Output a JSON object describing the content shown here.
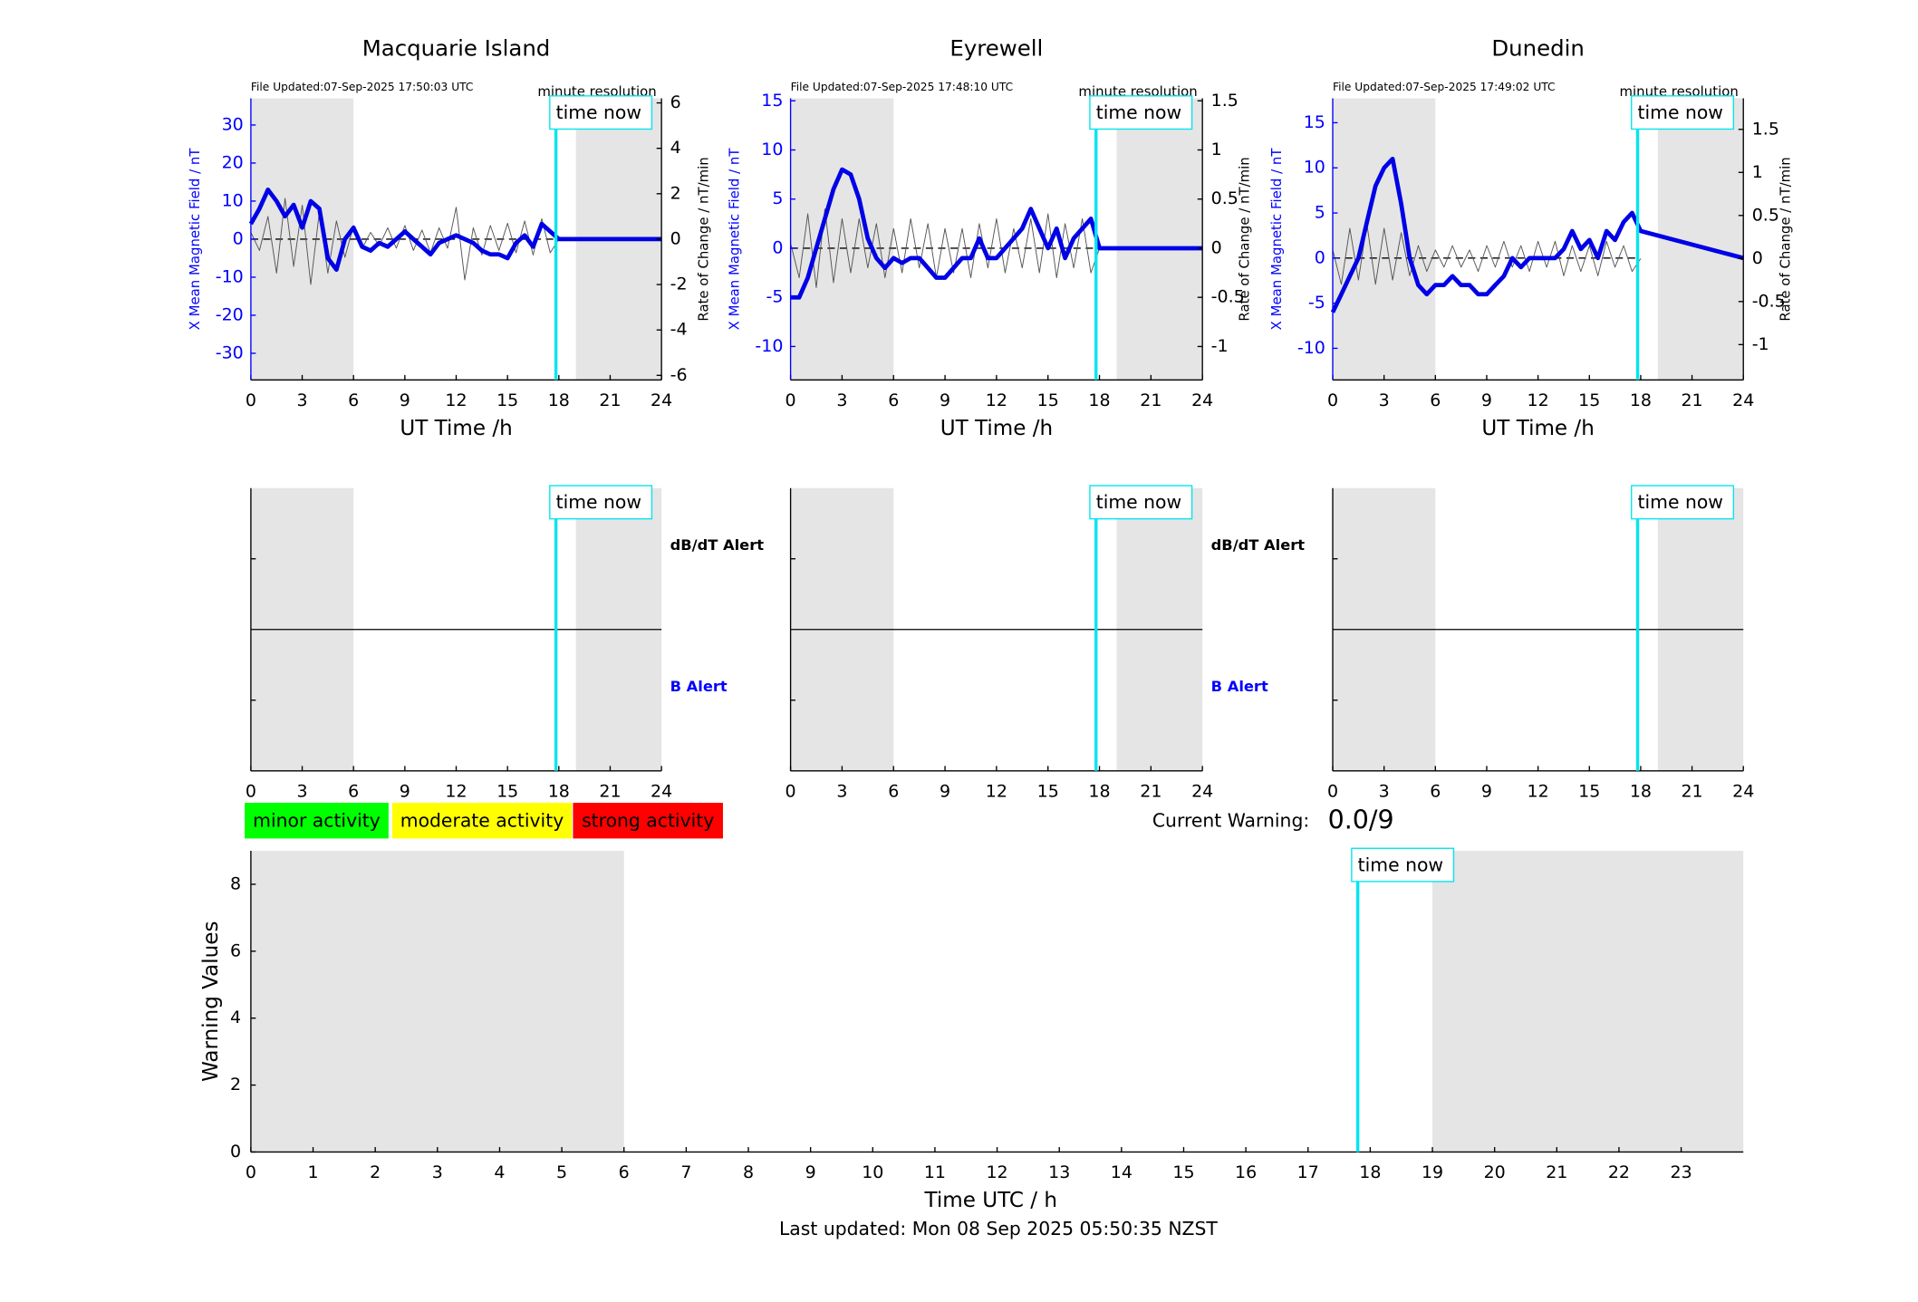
{
  "chart_data": [
    {
      "type": "station",
      "title": "Macquarie Island",
      "note": "File Updated:07-Sep-2025 17:50:03 UTC",
      "resolution": "minute resolution",
      "time_now": 17.83,
      "time_now_label": "time now",
      "xlabel": "UT Time /h",
      "ylabel": "X Mean Magnetic Field / nT",
      "y2label": "Rate of Change / nT/min",
      "xlim": [
        0,
        24
      ],
      "xticks": [
        0,
        3,
        6,
        9,
        12,
        15,
        18,
        21,
        24
      ],
      "ylim": [
        -37,
        37
      ],
      "yticks": [
        -30,
        -20,
        -10,
        0,
        10,
        20,
        30
      ],
      "y2lim": [
        -6.2,
        6.2
      ],
      "y2ticks": [
        -6,
        -4,
        -2,
        0,
        2,
        4,
        6
      ],
      "shaded": [
        [
          0,
          6
        ],
        [
          19,
          24
        ]
      ],
      "series": [
        {
          "color": "#555555",
          "axis": "y2",
          "x": [
            0,
            0.5,
            1,
            1.5,
            2,
            2.5,
            3,
            3.5,
            4,
            4.5,
            5,
            5.5,
            6,
            6.5,
            7,
            7.5,
            8,
            8.5,
            9,
            9.5,
            10,
            10.5,
            11,
            11.5,
            12,
            12.5,
            13,
            13.5,
            14,
            14.5,
            15,
            15.5,
            16,
            16.5,
            17,
            17.5,
            18
          ],
          "values": [
            0.3,
            -0.5,
            1,
            -1.5,
            1.8,
            -1.2,
            1.5,
            -2,
            1.2,
            -1.5,
            0.8,
            -0.8,
            0.6,
            -0.4,
            0.3,
            -0.3,
            0.5,
            -0.4,
            0.6,
            -0.5,
            0.4,
            -0.6,
            0.5,
            -0.4,
            1.4,
            -1.8,
            0.5,
            -0.7,
            0.6,
            -0.5,
            0.7,
            -0.6,
            0.8,
            -0.7,
            0.9,
            -0.6,
            0
          ]
        },
        {
          "color": "#0000e6",
          "x": [
            0,
            0.5,
            1,
            1.5,
            2,
            2.5,
            3,
            3.5,
            4,
            4.5,
            5,
            5.5,
            6,
            6.5,
            7,
            7.5,
            8,
            8.5,
            9,
            9.5,
            10,
            10.5,
            11,
            11.5,
            12,
            12.5,
            13,
            13.5,
            14,
            14.5,
            15,
            15.5,
            16,
            16.5,
            17,
            17.5,
            18,
            24
          ],
          "values": [
            4,
            8,
            13,
            10,
            6,
            9,
            3,
            10,
            8,
            -5,
            -8,
            0,
            3,
            -2,
            -3,
            -1,
            -2,
            0,
            2,
            0,
            -2,
            -4,
            -1,
            0,
            1,
            0,
            -1,
            -3,
            -4,
            -4,
            -5,
            -1,
            1,
            -2,
            4,
            2,
            0,
            0
          ]
        }
      ]
    },
    {
      "type": "station",
      "title": "Eyrewell",
      "note": "File Updated:07-Sep-2025 17:48:10 UTC",
      "resolution": "minute resolution",
      "time_now": 17.8,
      "time_now_label": "time now",
      "xlabel": "UT Time /h",
      "ylabel": "X Mean Magnetic Field / nT",
      "y2label": "Rate of Change / nT/min",
      "xlim": [
        0,
        24
      ],
      "xticks": [
        0,
        3,
        6,
        9,
        12,
        15,
        18,
        21,
        24
      ],
      "ylim": [
        -13.4,
        15.25
      ],
      "yticks": [
        -10,
        -5,
        0,
        5,
        10,
        15
      ],
      "y2lim": [
        -1.34,
        1.525
      ],
      "y2ticks": [
        -1,
        -0.5,
        0,
        0.5,
        1,
        1.5
      ],
      "shaded": [
        [
          0,
          6
        ],
        [
          19,
          24
        ]
      ],
      "series": [
        {
          "color": "#555555",
          "axis": "y2",
          "x": [
            0,
            0.5,
            1,
            1.5,
            2,
            2.5,
            3,
            3.5,
            4,
            4.5,
            5,
            5.5,
            6,
            6.5,
            7,
            7.5,
            8,
            8.5,
            9,
            9.5,
            10,
            10.5,
            11,
            11.5,
            12,
            12.5,
            13,
            13.5,
            14,
            14.5,
            15,
            15.5,
            16,
            16.5,
            17,
            17.5,
            18
          ],
          "values": [
            0.05,
            -0.3,
            0.35,
            -0.4,
            0.4,
            -0.35,
            0.3,
            -0.25,
            0.3,
            -0.2,
            0.25,
            -0.3,
            0.2,
            -0.25,
            0.3,
            -0.2,
            0.25,
            -0.3,
            0.2,
            -0.25,
            0.2,
            -0.3,
            0.25,
            -0.2,
            0.3,
            -0.25,
            0.2,
            -0.2,
            0.3,
            -0.25,
            0.35,
            -0.3,
            0.25,
            -0.2,
            0.3,
            -0.25,
            0
          ]
        },
        {
          "color": "#0000e6",
          "x": [
            0,
            0.5,
            1,
            1.5,
            2,
            2.5,
            3,
            3.5,
            4,
            4.5,
            5,
            5.5,
            6,
            6.5,
            7,
            7.5,
            8,
            8.5,
            9,
            9.5,
            10,
            10.5,
            11,
            11.5,
            12,
            12.5,
            13,
            13.5,
            14,
            14.5,
            15,
            15.5,
            16,
            16.5,
            17,
            17.5,
            18,
            24
          ],
          "values": [
            -5,
            -5,
            -3,
            0,
            3,
            6,
            8,
            7.5,
            5,
            1,
            -1,
            -2,
            -1,
            -1.5,
            -1,
            -1,
            -2,
            -3,
            -3,
            -2,
            -1,
            -1,
            1,
            -1,
            -1,
            0,
            1,
            2,
            4,
            2,
            0,
            2,
            -1,
            1,
            2,
            3,
            0,
            0
          ]
        }
      ]
    },
    {
      "type": "station",
      "title": "Dunedin",
      "note": "File Updated:07-Sep-2025 17:49:02 UTC",
      "resolution": "minute resolution",
      "time_now": 17.82,
      "time_now_label": "time now",
      "xlabel": "UT Time /h",
      "ylabel": "X Mean Magnetic Field / nT",
      "y2label": "Rate of Change / nT/min",
      "xlim": [
        0,
        24
      ],
      "xticks": [
        0,
        3,
        6,
        9,
        12,
        15,
        18,
        21,
        24
      ],
      "ylim": [
        -13.5,
        17.7
      ],
      "yticks": [
        -10,
        -5,
        0,
        5,
        10,
        15
      ],
      "y2lim": [
        -1.41,
        1.86
      ],
      "y2ticks": [
        -1,
        -0.5,
        0,
        0.5,
        1,
        1.5
      ],
      "shaded": [
        [
          0,
          6
        ],
        [
          19,
          24
        ]
      ],
      "series": [
        {
          "color": "#555555",
          "axis": "y2",
          "x": [
            0,
            0.5,
            1,
            1.5,
            2,
            2.5,
            3,
            3.5,
            4,
            4.5,
            5,
            5.5,
            6,
            6.5,
            7,
            7.5,
            8,
            8.5,
            9,
            9.5,
            10,
            10.5,
            11,
            11.5,
            12,
            12.5,
            13,
            13.5,
            14,
            14.5,
            15,
            15.5,
            16,
            16.5,
            17,
            17.5,
            18
          ],
          "values": [
            0.1,
            -0.3,
            0.35,
            -0.25,
            0.4,
            -0.3,
            0.35,
            -0.25,
            0.3,
            -0.2,
            0.15,
            -0.15,
            0.1,
            -0.1,
            0.15,
            -0.1,
            0.1,
            -0.15,
            0.15,
            -0.1,
            0.2,
            -0.1,
            0.15,
            -0.15,
            0.2,
            -0.1,
            0.2,
            -0.2,
            0.15,
            -0.15,
            0.15,
            -0.2,
            0.2,
            -0.1,
            0.15,
            -0.15,
            0
          ]
        },
        {
          "color": "#0000e6",
          "x": [
            0,
            0.5,
            1,
            1.5,
            2,
            2.5,
            3,
            3.5,
            4,
            4.5,
            5,
            5.5,
            6,
            6.5,
            7,
            7.5,
            8,
            8.5,
            9,
            9.5,
            10,
            10.5,
            11,
            11.5,
            12,
            12.5,
            13,
            13.5,
            14,
            14.5,
            15,
            15.5,
            16,
            16.5,
            17,
            17.5,
            18,
            24
          ],
          "values": [
            -6,
            -4,
            -2,
            0,
            4,
            8,
            10,
            11,
            6,
            0,
            -3,
            -4,
            -3,
            -3,
            -2,
            -3,
            -3,
            -4,
            -4,
            -3,
            -2,
            0,
            -1,
            0,
            0,
            0,
            0,
            1,
            3,
            1,
            2,
            0,
            3,
            2,
            4,
            5,
            3,
            0
          ]
        }
      ]
    },
    {
      "type": "alert",
      "time_now": 17.83,
      "time_now_label": "time now",
      "xlim": [
        0,
        24
      ],
      "xticks": [
        0,
        3,
        6,
        9,
        12,
        15,
        18,
        21,
        24
      ],
      "shaded": [
        [
          0,
          6
        ],
        [
          19,
          24
        ]
      ],
      "labels": [
        "dB/dT Alert",
        "B Alert"
      ],
      "label_colors": [
        "#000000",
        "#0000ff"
      ]
    },
    {
      "type": "alert",
      "time_now": 17.8,
      "time_now_label": "time now",
      "xlim": [
        0,
        24
      ],
      "xticks": [
        0,
        3,
        6,
        9,
        12,
        15,
        18,
        21,
        24
      ],
      "shaded": [
        [
          0,
          6
        ],
        [
          19,
          24
        ]
      ],
      "labels": [
        "dB/dT Alert",
        "B Alert"
      ],
      "label_colors": [
        "#000000",
        "#0000ff"
      ]
    },
    {
      "type": "alert",
      "time_now": 17.82,
      "time_now_label": "time now",
      "xlim": [
        0,
        24
      ],
      "xticks": [
        0,
        3,
        6,
        9,
        12,
        15,
        18,
        21,
        24
      ],
      "shaded": [
        [
          0,
          6
        ],
        [
          19,
          24
        ]
      ],
      "labels": [],
      "label_colors": []
    },
    {
      "type": "warning",
      "time_now": 17.8,
      "time_now_label": "time now",
      "xlabel": "Time UTC / h",
      "ylabel": "Warning Values",
      "xlim": [
        0,
        24
      ],
      "xticks": [
        0,
        1,
        2,
        3,
        4,
        5,
        6,
        7,
        8,
        9,
        10,
        11,
        12,
        13,
        14,
        15,
        16,
        17,
        18,
        19,
        20,
        21,
        22,
        23
      ],
      "ylim": [
        0,
        9
      ],
      "yticks": [
        0,
        2,
        4,
        6,
        8
      ],
      "shaded": [
        [
          0,
          6
        ],
        [
          19,
          24
        ]
      ],
      "legend": [
        {
          "label": "minor activity",
          "color": "#00ff00"
        },
        {
          "label": "moderate activity",
          "color": "#ffff00"
        },
        {
          "label": "strong activity",
          "color": "#ff0000"
        }
      ],
      "current_warning_label": "Current Warning:",
      "current_warning": "0.0/9",
      "footer": "Last updated: Mon 08 Sep 2025 05:50:35 NZST"
    }
  ]
}
